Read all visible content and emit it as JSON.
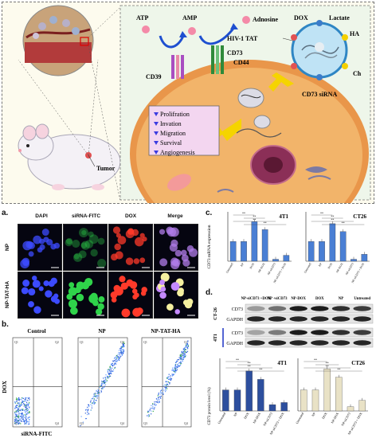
{
  "schematic": {
    "mouse_label": "Tumor",
    "molecules": {
      "atp": "ATP",
      "amp": "AMP",
      "adenosine": "Adnosine",
      "cd39": "CD39",
      "cd73": "CD73",
      "cd44": "CD44",
      "tat": "HIV-1 TAT",
      "dox": "DOX",
      "lactate": "Lactate",
      "ha": "HA",
      "ch": "Ch",
      "sirna": "CD73 siRNA"
    },
    "effects": [
      "Prolifration",
      "Invation",
      "Migration",
      "Survival",
      "Angiogenesis"
    ],
    "colors": {
      "cell": "#f2b46a",
      "membrane": "#e9964a",
      "effect_box": "#f3d6f0",
      "arrow": "#f5d400"
    }
  },
  "panel_a": {
    "letter": "a.",
    "columns": [
      "DAPI",
      "siRNA-FITC",
      "DOX",
      "Merge"
    ],
    "rows": [
      "NP",
      "NP-TAT-HA"
    ]
  },
  "panel_b": {
    "letter": "b.",
    "xlabel": "siRNA-FITC",
    "ylabel": "DOX",
    "titles": [
      "Control",
      "NP",
      "NP-TAT-HA"
    ],
    "quadrants": [
      "Q1",
      "Q2",
      "Q3",
      "Q4"
    ]
  },
  "panel_c": {
    "letter": "c.",
    "ylabel": "CD73 mRNA expression"
  },
  "panel_d": {
    "letter": "d.",
    "blot_columns": [
      "NP-siCD73 +DOX",
      "NP +siCD73",
      "NP-DOX",
      "DOX",
      "NP",
      "Untreated"
    ],
    "blot_rows": [
      "CD73",
      "GAPDH",
      "CD73",
      "GAPDH"
    ],
    "cell_lines": [
      "CT-26",
      "4T1"
    ],
    "ylabel": "CD73 protein level (%)"
  },
  "chart_data": [
    {
      "type": "bar",
      "title": "4T1",
      "categories": [
        "Untreated",
        "NP",
        "DOX",
        "NP-DOX",
        "NP-siCD73",
        "NP-siCD73 + DOX"
      ],
      "values": [
        1.0,
        1.0,
        2.0,
        1.6,
        0.1,
        0.3
      ],
      "ylim": [
        0,
        2.5
      ],
      "color": "#4a7fd4"
    },
    {
      "type": "bar",
      "title": "CT26",
      "categories": [
        "Untreated",
        "NP",
        "DOX",
        "NP-DOX",
        "NP-siCD73",
        "NP-siCD73 + DOX"
      ],
      "values": [
        1.0,
        1.0,
        1.9,
        1.5,
        0.1,
        0.35
      ],
      "ylim": [
        0,
        2.5
      ],
      "color": "#4a7fd4"
    },
    {
      "type": "bar",
      "title": "4T1",
      "categories": [
        "Untreated",
        "NP",
        "DOX",
        "NP-DOX",
        "NP-siCD73",
        "NP-siCD73 + DOX"
      ],
      "values": [
        100,
        100,
        190,
        150,
        30,
        40
      ],
      "ylim": [
        0,
        250
      ],
      "color": "#2d4f9e"
    },
    {
      "type": "bar",
      "title": "CT26",
      "categories": [
        "Untreated",
        "NP",
        "DOX",
        "NP-DOX",
        "NP-siCD73",
        "NP-siCD73 + DOX"
      ],
      "values": [
        100,
        100,
        200,
        160,
        20,
        50
      ],
      "ylim": [
        0,
        250
      ],
      "color": "#e9e2c6"
    }
  ],
  "significance": {
    "star": "*",
    "double": "**",
    "ns": "ns"
  }
}
